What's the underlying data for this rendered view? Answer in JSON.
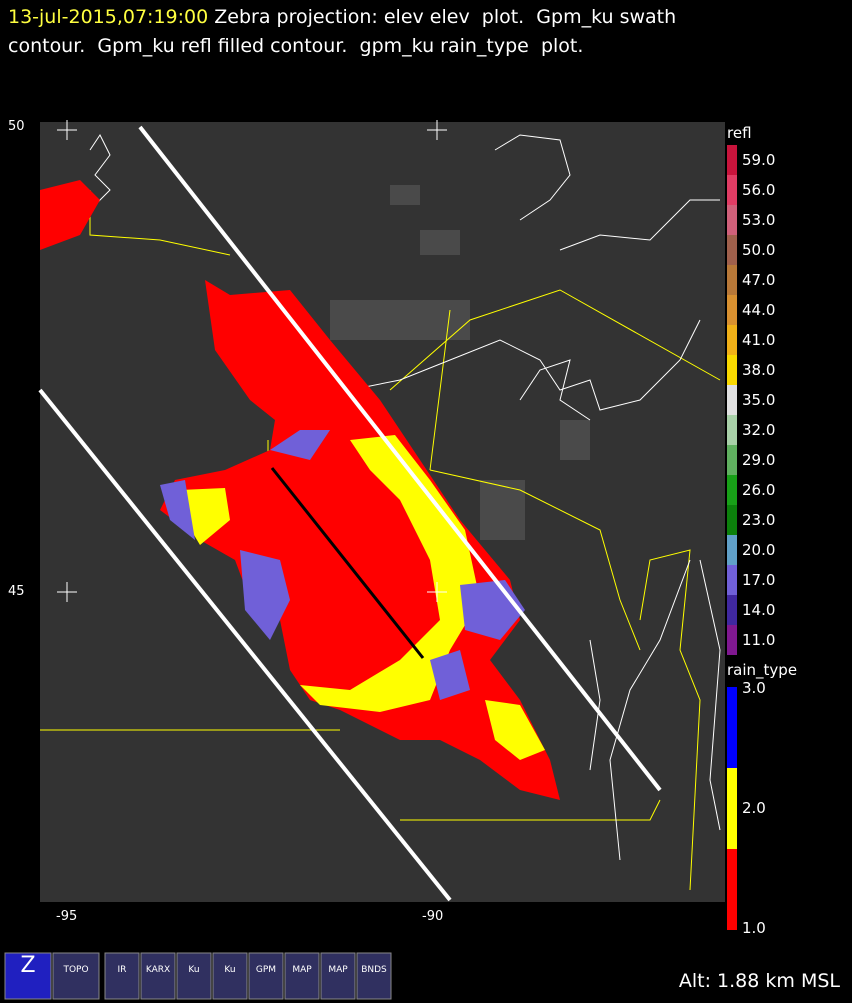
{
  "header": {
    "timestamp": "13-jul-2015,07:19:00",
    "line1": " Zebra projection: elev elev  plot.  Gpm_ku swath",
    "line2": "contour.  Gpm_ku refl filled contour.  gpm_ku rain_type  plot."
  },
  "map": {
    "lat_labels": [
      "50",
      "45"
    ],
    "lon_labels": [
      "-95",
      "-90"
    ]
  },
  "refl_legend": {
    "title": "refl",
    "entries": [
      {
        "label": "59.0",
        "color": "#c8143c"
      },
      {
        "label": "56.0",
        "color": "#e03c64"
      },
      {
        "label": "53.0",
        "color": "#d0607a"
      },
      {
        "label": "50.0",
        "color": "#a0604c"
      },
      {
        "label": "47.0",
        "color": "#b87838"
      },
      {
        "label": "44.0",
        "color": "#d89030"
      },
      {
        "label": "41.0",
        "color": "#f0b018"
      },
      {
        "label": "38.0",
        "color": "#f8d800"
      },
      {
        "label": "35.0",
        "color": "#e0e0e0"
      },
      {
        "label": "32.0",
        "color": "#a8d0a8"
      },
      {
        "label": "29.0",
        "color": "#60b060"
      },
      {
        "label": "26.0",
        "color": "#18a018"
      },
      {
        "label": "23.0",
        "color": "#0c800c"
      },
      {
        "label": "20.0",
        "color": "#60a0c8"
      },
      {
        "label": "17.0",
        "color": "#7060d8"
      },
      {
        "label": "14.0",
        "color": "#4028a0"
      },
      {
        "label": "11.0",
        "color": "#801890"
      }
    ]
  },
  "rain_legend": {
    "title": "rain_type",
    "entries": [
      {
        "label": "3.0",
        "color": "#0000ff"
      },
      {
        "label": "2.0",
        "color": "#ffff00"
      },
      {
        "label": "1.0",
        "color": "#ff0000"
      }
    ]
  },
  "toolbar": [
    "Z",
    "TOPO",
    "IR",
    "KARX",
    "Ku",
    "Ku",
    "GPM",
    "MAP",
    "MAP",
    "BNDS"
  ],
  "status": "Alt: 1.88 km MSL"
}
